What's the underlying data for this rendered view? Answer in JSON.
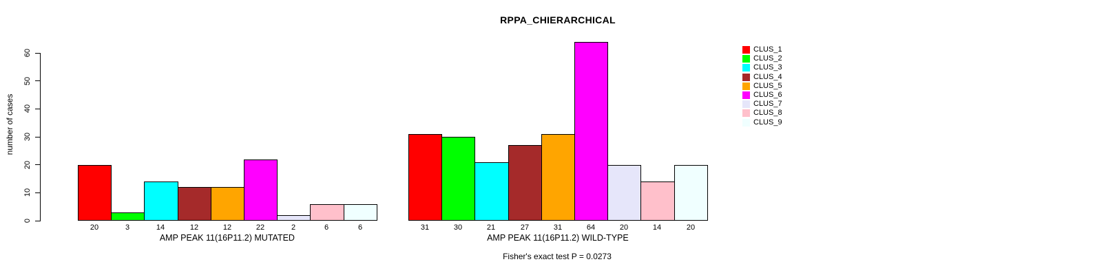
{
  "title": "RPPA_CHIERARCHICAL",
  "chart_data": {
    "type": "bar",
    "title": "RPPA_CHIERARCHICAL",
    "ylabel": "number of cases",
    "xlabel": "",
    "ylim": [
      0,
      60
    ],
    "yticks": [
      0,
      10,
      20,
      30,
      40,
      50,
      60
    ],
    "grid": false,
    "legend_position": "right",
    "legend": [
      {
        "label": "CLUS_1",
        "color": "#FF0000"
      },
      {
        "label": "CLUS_2",
        "color": "#00FF00"
      },
      {
        "label": "CLUS_3",
        "color": "#00FFFF"
      },
      {
        "label": "CLUS_4",
        "color": "#A52A2A"
      },
      {
        "label": "CLUS_5",
        "color": "#FFA500"
      },
      {
        "label": "CLUS_6",
        "color": "#FF00FF"
      },
      {
        "label": "CLUS_7",
        "color": "#E6E6FA"
      },
      {
        "label": "CLUS_8",
        "color": "#FFC0CB"
      },
      {
        "label": "CLUS_9",
        "color": "#F0FFFF"
      }
    ],
    "groups": [
      {
        "label": "AMP PEAK 11(16P11.2) MUTATED",
        "values": [
          20,
          3,
          14,
          12,
          12,
          22,
          2,
          6,
          6
        ]
      },
      {
        "label": "AMP PEAK 11(16P11.2) WILD-TYPE",
        "values": [
          31,
          30,
          21,
          27,
          31,
          64,
          20,
          14,
          20
        ]
      }
    ],
    "annotation": "Fisher's exact test P = 0.0273"
  }
}
